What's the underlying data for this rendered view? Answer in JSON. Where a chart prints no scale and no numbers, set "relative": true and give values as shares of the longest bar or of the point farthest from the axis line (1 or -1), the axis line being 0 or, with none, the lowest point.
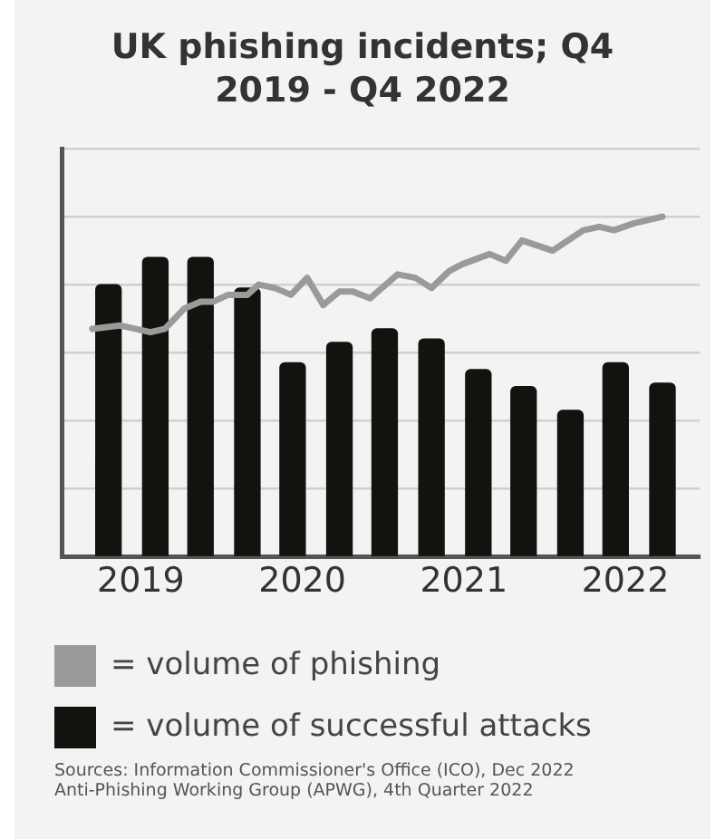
{
  "chart_data": {
    "type": "bar",
    "title": "UK phishing incidents; Q4 2019 - Q4 2022",
    "relative": true,
    "grid": "y",
    "legend": "bottom",
    "marker": "none",
    "xlim": [
      2018.51,
      2022.46
    ],
    "xticks": [
      2019,
      2020,
      2021,
      2022
    ],
    "series": [
      {
        "name": "= volume of successful attacks",
        "color": "#13120e",
        "x": [
          2018.8,
          2019.09,
          2019.37,
          2019.66,
          2019.94,
          2020.23,
          2020.51,
          2020.8,
          2021.09,
          2021.37,
          2021.66,
          2021.94,
          2022.23
        ],
        "values": [
          0.8,
          0.88,
          0.88,
          0.79,
          0.57,
          0.63,
          0.67,
          0.64,
          0.55,
          0.5,
          0.43,
          0.57,
          0.51
        ]
      },
      {
        "name": "= volume of phishing",
        "type": "line",
        "color": "#9a9a9a",
        "x": [
          2018.7,
          2018.87,
          2019.06,
          2019.15,
          2019.27,
          2019.37,
          2019.45,
          2019.54,
          2019.66,
          2019.73,
          2019.83,
          2019.93,
          2020.03,
          2020.13,
          2020.23,
          2020.31,
          2020.42,
          2020.59,
          2020.7,
          2020.8,
          2020.91,
          2020.99,
          2021.16,
          2021.26,
          2021.36,
          2021.55,
          2021.74,
          2021.84,
          2021.93,
          2022.05,
          2022.23
        ],
        "values": [
          0.67,
          0.68,
          0.66,
          0.67,
          0.73,
          0.75,
          0.75,
          0.77,
          0.77,
          0.8,
          0.79,
          0.77,
          0.82,
          0.74,
          0.78,
          0.78,
          0.76,
          0.83,
          0.82,
          0.79,
          0.84,
          0.86,
          0.89,
          0.87,
          0.93,
          0.9,
          0.96,
          0.97,
          0.96,
          0.98,
          1
        ]
      }
    ],
    "annotations": [
      "Sources: Information Commissioner's Office (ICO), Dec 2022",
      "Anti-Phishing Working Group (APWG), 4th Quarter 2022"
    ]
  }
}
